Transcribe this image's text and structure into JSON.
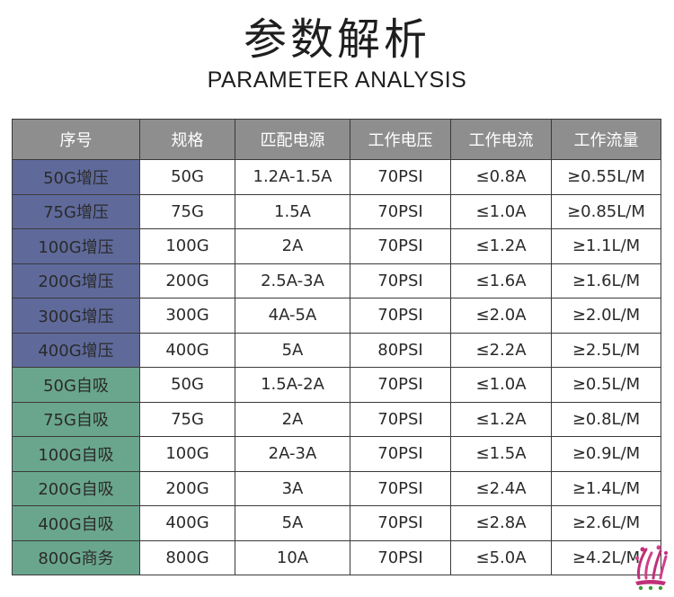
{
  "title": "参数解析",
  "subtitle": "PARAMETER ANALYSIS",
  "colors": {
    "header_bg": "#8e8e8e",
    "booster_bg": "#5f6a9b",
    "selfprime_bg": "#6aa68e",
    "border": "#3a3a3a"
  },
  "table": {
    "headers": [
      "序号",
      "规格",
      "匹配电源",
      "工作电压",
      "工作电流",
      "工作流量"
    ],
    "rows": [
      {
        "model": "50G增压",
        "type": "booster",
        "spec": "50G",
        "power": "1.2A-1.5A",
        "voltage": "70PSI",
        "current": "≤0.8A",
        "flow": "≥0.55L/M"
      },
      {
        "model": "75G增压",
        "type": "booster",
        "spec": "75G",
        "power": "1.5A",
        "voltage": "70PSI",
        "current": "≤1.0A",
        "flow": "≥0.85L/M"
      },
      {
        "model": "100G增压",
        "type": "booster",
        "spec": "100G",
        "power": "2A",
        "voltage": "70PSI",
        "current": "≤1.2A",
        "flow": "≥1.1L/M"
      },
      {
        "model": "200G增压",
        "type": "booster",
        "spec": "200G",
        "power": "2.5A-3A",
        "voltage": "70PSI",
        "current": "≤1.6A",
        "flow": "≥1.6L/M"
      },
      {
        "model": "300G增压",
        "type": "booster",
        "spec": "300G",
        "power": "4A-5A",
        "voltage": "70PSI",
        "current": "≤2.0A",
        "flow": "≥2.0L/M"
      },
      {
        "model": "400G增压",
        "type": "booster",
        "spec": "400G",
        "power": "5A",
        "voltage": "80PSI",
        "current": "≤2.2A",
        "flow": "≥2.5L/M"
      },
      {
        "model": "50G自吸",
        "type": "selfprime",
        "spec": "50G",
        "power": "1.5A-2A",
        "voltage": "70PSI",
        "current": "≤1.0A",
        "flow": "≥0.5L/M"
      },
      {
        "model": "75G自吸",
        "type": "selfprime",
        "spec": "75G",
        "power": "2A",
        "voltage": "70PSI",
        "current": "≤1.2A",
        "flow": "≥0.8L/M"
      },
      {
        "model": "100G自吸",
        "type": "selfprime",
        "spec": "100G",
        "power": "2A-3A",
        "voltage": "70PSI",
        "current": "≤1.5A",
        "flow": "≥0.9L/M"
      },
      {
        "model": "200G自吸",
        "type": "selfprime",
        "spec": "200G",
        "power": "3A",
        "voltage": "70PSI",
        "current": "≤2.4A",
        "flow": "≥1.4L/M"
      },
      {
        "model": "400G自吸",
        "type": "selfprime",
        "spec": "400G",
        "power": "5A",
        "voltage": "70PSI",
        "current": "≤2.8A",
        "flow": "≥2.6L/M"
      },
      {
        "model": "800G商务",
        "type": "business",
        "spec": "800G",
        "power": "10A",
        "voltage": "70PSI",
        "current": "≤5.0A",
        "flow": "≥4.2L/M"
      }
    ]
  },
  "logo_icon": "fountain-splash-logo-icon"
}
